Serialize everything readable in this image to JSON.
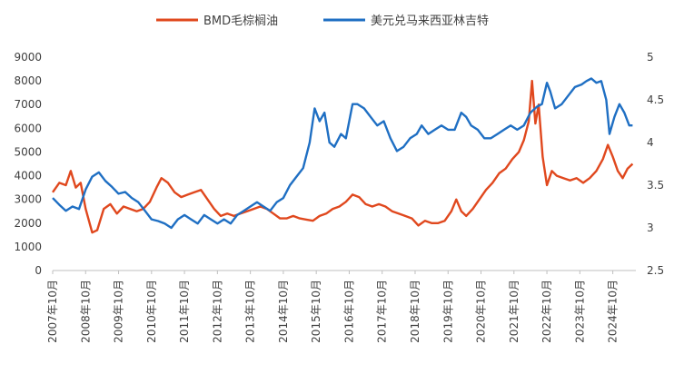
{
  "chart_data": {
    "type": "line",
    "title": "",
    "legend_position": "top",
    "grid": false,
    "x": [
      "2007年10月",
      "2008年10月",
      "2009年10月",
      "2010年10月",
      "2011年10月",
      "2012年10月",
      "2013年10月",
      "2014年10月",
      "2015年10月",
      "2016年10月",
      "2017年10月",
      "2018年10月",
      "2019年10月",
      "2020年10月",
      "2021年10月",
      "2022年10月",
      "2023年10月",
      "2024年10月"
    ],
    "left_axis": {
      "ylim": [
        0,
        9000
      ],
      "ticks": [
        "0",
        "1000",
        "2000",
        "3000",
        "4000",
        "5000",
        "6000",
        "7000",
        "8000",
        "9000"
      ]
    },
    "right_axis": {
      "ylim": [
        2.5,
        5
      ],
      "ticks": [
        "2.5",
        "3",
        "3.5",
        "4",
        "4.5",
        "5"
      ]
    },
    "series": [
      {
        "name": "BMD毛棕榈油",
        "axis": "left",
        "color": "#E0481E",
        "points": [
          [
            2007.75,
            3300
          ],
          [
            2007.95,
            3700
          ],
          [
            2008.15,
            3600
          ],
          [
            2008.3,
            4200
          ],
          [
            2008.45,
            3500
          ],
          [
            2008.6,
            3700
          ],
          [
            2008.75,
            2600
          ],
          [
            2008.95,
            1600
          ],
          [
            2009.1,
            1700
          ],
          [
            2009.3,
            2600
          ],
          [
            2009.5,
            2800
          ],
          [
            2009.7,
            2400
          ],
          [
            2009.9,
            2700
          ],
          [
            2010.1,
            2600
          ],
          [
            2010.3,
            2500
          ],
          [
            2010.5,
            2600
          ],
          [
            2010.7,
            2900
          ],
          [
            2010.9,
            3500
          ],
          [
            2011.05,
            3900
          ],
          [
            2011.25,
            3700
          ],
          [
            2011.45,
            3300
          ],
          [
            2011.65,
            3100
          ],
          [
            2011.85,
            3200
          ],
          [
            2012.05,
            3300
          ],
          [
            2012.25,
            3400
          ],
          [
            2012.45,
            3000
          ],
          [
            2012.65,
            2600
          ],
          [
            2012.85,
            2300
          ],
          [
            2013.05,
            2400
          ],
          [
            2013.25,
            2300
          ],
          [
            2013.45,
            2400
          ],
          [
            2013.65,
            2500
          ],
          [
            2013.85,
            2600
          ],
          [
            2014.05,
            2700
          ],
          [
            2014.25,
            2600
          ],
          [
            2014.45,
            2400
          ],
          [
            2014.65,
            2200
          ],
          [
            2014.85,
            2200
          ],
          [
            2015.05,
            2300
          ],
          [
            2015.25,
            2200
          ],
          [
            2015.45,
            2150
          ],
          [
            2015.65,
            2100
          ],
          [
            2015.85,
            2300
          ],
          [
            2016.05,
            2400
          ],
          [
            2016.25,
            2600
          ],
          [
            2016.45,
            2700
          ],
          [
            2016.65,
            2900
          ],
          [
            2016.85,
            3200
          ],
          [
            2017.05,
            3100
          ],
          [
            2017.25,
            2800
          ],
          [
            2017.45,
            2700
          ],
          [
            2017.65,
            2800
          ],
          [
            2017.85,
            2700
          ],
          [
            2018.05,
            2500
          ],
          [
            2018.25,
            2400
          ],
          [
            2018.45,
            2300
          ],
          [
            2018.65,
            2200
          ],
          [
            2018.85,
            1900
          ],
          [
            2019.05,
            2100
          ],
          [
            2019.25,
            2000
          ],
          [
            2019.45,
            2000
          ],
          [
            2019.65,
            2100
          ],
          [
            2019.85,
            2500
          ],
          [
            2020.0,
            3000
          ],
          [
            2020.15,
            2500
          ],
          [
            2020.3,
            2300
          ],
          [
            2020.5,
            2600
          ],
          [
            2020.7,
            3000
          ],
          [
            2020.9,
            3400
          ],
          [
            2021.1,
            3700
          ],
          [
            2021.3,
            4100
          ],
          [
            2021.5,
            4300
          ],
          [
            2021.7,
            4700
          ],
          [
            2021.9,
            5000
          ],
          [
            2022.05,
            5500
          ],
          [
            2022.2,
            6300
          ],
          [
            2022.3,
            8000
          ],
          [
            2022.4,
            6200
          ],
          [
            2022.5,
            7000
          ],
          [
            2022.62,
            4800
          ],
          [
            2022.75,
            3600
          ],
          [
            2022.9,
            4200
          ],
          [
            2023.05,
            4000
          ],
          [
            2023.25,
            3900
          ],
          [
            2023.45,
            3800
          ],
          [
            2023.65,
            3900
          ],
          [
            2023.85,
            3700
          ],
          [
            2024.05,
            3900
          ],
          [
            2024.25,
            4200
          ],
          [
            2024.45,
            4700
          ],
          [
            2024.6,
            5300
          ],
          [
            2024.75,
            4800
          ],
          [
            2024.9,
            4200
          ],
          [
            2025.05,
            3900
          ],
          [
            2025.2,
            4300
          ],
          [
            2025.35,
            4500
          ]
        ]
      },
      {
        "name": "美元兑马来西亚林吉特",
        "axis": "right",
        "color": "#1F6FC3",
        "points": [
          [
            2007.75,
            3.35
          ],
          [
            2007.95,
            3.27
          ],
          [
            2008.15,
            3.2
          ],
          [
            2008.35,
            3.25
          ],
          [
            2008.55,
            3.22
          ],
          [
            2008.75,
            3.45
          ],
          [
            2008.95,
            3.6
          ],
          [
            2009.15,
            3.65
          ],
          [
            2009.35,
            3.55
          ],
          [
            2009.55,
            3.48
          ],
          [
            2009.75,
            3.4
          ],
          [
            2009.95,
            3.42
          ],
          [
            2010.15,
            3.35
          ],
          [
            2010.35,
            3.3
          ],
          [
            2010.55,
            3.2
          ],
          [
            2010.75,
            3.1
          ],
          [
            2010.95,
            3.08
          ],
          [
            2011.15,
            3.05
          ],
          [
            2011.35,
            3.0
          ],
          [
            2011.55,
            3.1
          ],
          [
            2011.75,
            3.15
          ],
          [
            2011.95,
            3.1
          ],
          [
            2012.15,
            3.05
          ],
          [
            2012.35,
            3.15
          ],
          [
            2012.55,
            3.1
          ],
          [
            2012.75,
            3.05
          ],
          [
            2012.95,
            3.1
          ],
          [
            2013.15,
            3.05
          ],
          [
            2013.35,
            3.15
          ],
          [
            2013.55,
            3.2
          ],
          [
            2013.75,
            3.25
          ],
          [
            2013.95,
            3.3
          ],
          [
            2014.15,
            3.25
          ],
          [
            2014.35,
            3.2
          ],
          [
            2014.55,
            3.3
          ],
          [
            2014.75,
            3.35
          ],
          [
            2014.95,
            3.5
          ],
          [
            2015.15,
            3.6
          ],
          [
            2015.35,
            3.7
          ],
          [
            2015.55,
            4.0
          ],
          [
            2015.7,
            4.4
          ],
          [
            2015.85,
            4.25
          ],
          [
            2016.0,
            4.35
          ],
          [
            2016.15,
            4.0
          ],
          [
            2016.3,
            3.95
          ],
          [
            2016.5,
            4.1
          ],
          [
            2016.65,
            4.05
          ],
          [
            2016.85,
            4.45
          ],
          [
            2017.0,
            4.45
          ],
          [
            2017.2,
            4.4
          ],
          [
            2017.4,
            4.3
          ],
          [
            2017.6,
            4.2
          ],
          [
            2017.8,
            4.25
          ],
          [
            2018.0,
            4.05
          ],
          [
            2018.2,
            3.9
          ],
          [
            2018.4,
            3.95
          ],
          [
            2018.6,
            4.05
          ],
          [
            2018.8,
            4.1
          ],
          [
            2018.95,
            4.2
          ],
          [
            2019.15,
            4.1
          ],
          [
            2019.35,
            4.15
          ],
          [
            2019.55,
            4.2
          ],
          [
            2019.75,
            4.15
          ],
          [
            2019.95,
            4.15
          ],
          [
            2020.15,
            4.35
          ],
          [
            2020.3,
            4.3
          ],
          [
            2020.45,
            4.2
          ],
          [
            2020.65,
            4.15
          ],
          [
            2020.85,
            4.05
          ],
          [
            2021.05,
            4.05
          ],
          [
            2021.25,
            4.1
          ],
          [
            2021.45,
            4.15
          ],
          [
            2021.65,
            4.2
          ],
          [
            2021.85,
            4.15
          ],
          [
            2022.05,
            4.2
          ],
          [
            2022.25,
            4.35
          ],
          [
            2022.45,
            4.42
          ],
          [
            2022.6,
            4.45
          ],
          [
            2022.75,
            4.7
          ],
          [
            2022.85,
            4.6
          ],
          [
            2023.0,
            4.4
          ],
          [
            2023.2,
            4.45
          ],
          [
            2023.4,
            4.55
          ],
          [
            2023.6,
            4.65
          ],
          [
            2023.8,
            4.68
          ],
          [
            2023.95,
            4.72
          ],
          [
            2024.1,
            4.75
          ],
          [
            2024.25,
            4.7
          ],
          [
            2024.4,
            4.72
          ],
          [
            2024.55,
            4.5
          ],
          [
            2024.65,
            4.1
          ],
          [
            2024.8,
            4.3
          ],
          [
            2024.95,
            4.45
          ],
          [
            2025.1,
            4.35
          ],
          [
            2025.25,
            4.2
          ],
          [
            2025.35,
            4.2
          ]
        ]
      }
    ]
  }
}
